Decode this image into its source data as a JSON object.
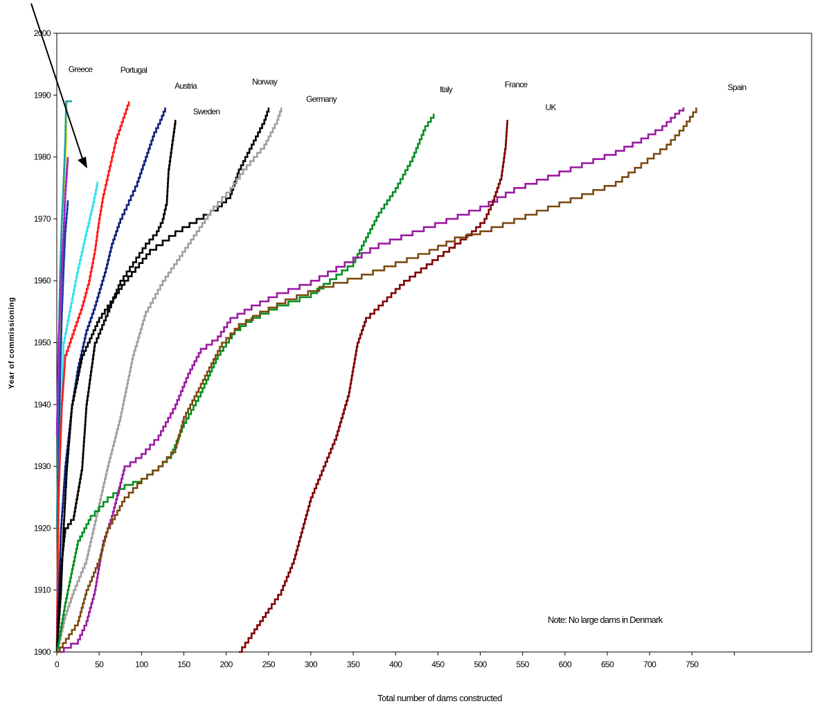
{
  "chart_data": {
    "type": "line",
    "xlabel": "Total number of dams constructed",
    "ylabel": "Year of commissioning",
    "xlim": [
      0,
      800
    ],
    "ylim": [
      1900,
      2000
    ],
    "x_ticks": [
      0,
      50,
      100,
      150,
      200,
      250,
      300,
      350,
      400,
      450,
      500,
      550,
      600,
      650,
      700,
      750
    ],
    "y_ticks": [
      1900,
      1910,
      1920,
      1930,
      1940,
      1950,
      1960,
      1970,
      1980,
      1990,
      2000
    ],
    "note": "Note:  No large dams in Denmark",
    "grid": false,
    "legend": "none (series labelled directly)",
    "arrow": "points to small-country curves",
    "series": [
      {
        "name": "Greece",
        "color": "#f0e020",
        "labeled": true,
        "points": [
          [
            0,
            1900
          ],
          [
            2,
            1935
          ],
          [
            3,
            1948
          ],
          [
            5,
            1955
          ],
          [
            7,
            1962
          ],
          [
            9,
            1970
          ],
          [
            10,
            1978
          ],
          [
            11,
            1983
          ],
          [
            12,
            1989
          ]
        ]
      },
      {
        "name": "",
        "color": "#1aa5a0",
        "labeled": false,
        "points": [
          [
            0,
            1920
          ],
          [
            2,
            1940
          ],
          [
            3,
            1955
          ],
          [
            4,
            1962
          ],
          [
            6,
            1970
          ],
          [
            8,
            1976
          ],
          [
            10,
            1983
          ],
          [
            11,
            1989
          ],
          [
            18,
            1989
          ]
        ]
      },
      {
        "name": "",
        "color": "#a020d0",
        "labeled": false,
        "points": [
          [
            0,
            1935
          ],
          [
            2,
            1950
          ],
          [
            5,
            1960
          ],
          [
            8,
            1968
          ],
          [
            10,
            1974
          ],
          [
            13,
            1980
          ]
        ]
      },
      {
        "name": "",
        "color": "#1a3aa0",
        "labeled": false,
        "points": [
          [
            0,
            1900
          ],
          [
            2,
            1930
          ],
          [
            4,
            1945
          ],
          [
            6,
            1955
          ],
          [
            8,
            1962
          ],
          [
            10,
            1968
          ],
          [
            13,
            1973
          ]
        ]
      },
      {
        "name": "",
        "color": "#30e0f0",
        "labeled": false,
        "points": [
          [
            0,
            1900
          ],
          [
            3,
            1930
          ],
          [
            8,
            1950
          ],
          [
            15,
            1955
          ],
          [
            25,
            1962
          ],
          [
            35,
            1968
          ],
          [
            42,
            1972
          ],
          [
            48,
            1976
          ]
        ]
      },
      {
        "name": "Portugal",
        "color": "#ff1a1a",
        "labeled": true,
        "points": [
          [
            0,
            1900
          ],
          [
            2,
            1925
          ],
          [
            6,
            1940
          ],
          [
            10,
            1948
          ],
          [
            20,
            1952
          ],
          [
            30,
            1956
          ],
          [
            38,
            1960
          ],
          [
            45,
            1965
          ],
          [
            50,
            1970
          ],
          [
            55,
            1974
          ],
          [
            60,
            1977
          ],
          [
            65,
            1980
          ],
          [
            70,
            1983
          ],
          [
            80,
            1987
          ],
          [
            85,
            1989
          ]
        ]
      },
      {
        "name": "Austria",
        "color": "#10207a",
        "labeled": true,
        "points": [
          [
            0,
            1900
          ],
          [
            5,
            1920
          ],
          [
            10,
            1930
          ],
          [
            18,
            1940
          ],
          [
            25,
            1946
          ],
          [
            35,
            1952
          ],
          [
            45,
            1956
          ],
          [
            58,
            1962
          ],
          [
            65,
            1966
          ],
          [
            75,
            1970
          ],
          [
            85,
            1973
          ],
          [
            95,
            1976
          ],
          [
            105,
            1980
          ],
          [
            115,
            1984
          ],
          [
            122,
            1986
          ],
          [
            128,
            1988
          ]
        ]
      },
      {
        "name": "Sweden",
        "color": "#000000",
        "labeled": true,
        "points": [
          [
            0,
            1900
          ],
          [
            3,
            1908
          ],
          [
            6,
            1915
          ],
          [
            10,
            1920
          ],
          [
            20,
            1922
          ],
          [
            30,
            1930
          ],
          [
            35,
            1940
          ],
          [
            45,
            1950
          ],
          [
            60,
            1955
          ],
          [
            75,
            1960
          ],
          [
            90,
            1963
          ],
          [
            105,
            1966
          ],
          [
            118,
            1968
          ],
          [
            125,
            1970
          ],
          [
            130,
            1973
          ],
          [
            132,
            1978
          ],
          [
            136,
            1982
          ],
          [
            140,
            1986
          ]
        ]
      },
      {
        "name": "Norway",
        "color": "#000000",
        "labeled": true,
        "points": [
          [
            0,
            1900
          ],
          [
            5,
            1910
          ],
          [
            8,
            1920
          ],
          [
            12,
            1930
          ],
          [
            18,
            1940
          ],
          [
            30,
            1948
          ],
          [
            50,
            1954
          ],
          [
            80,
            1960
          ],
          [
            110,
            1965
          ],
          [
            140,
            1968
          ],
          [
            165,
            1970
          ],
          [
            190,
            1972
          ],
          [
            205,
            1974
          ],
          [
            215,
            1978
          ],
          [
            230,
            1982
          ],
          [
            245,
            1986
          ],
          [
            250,
            1988
          ]
        ]
      },
      {
        "name": "Germany",
        "color": "#a0a0a0",
        "labeled": true,
        "points": [
          [
            0,
            1900
          ],
          [
            10,
            1906
          ],
          [
            20,
            1910
          ],
          [
            35,
            1915
          ],
          [
            50,
            1924
          ],
          [
            60,
            1930
          ],
          [
            75,
            1938
          ],
          [
            90,
            1948
          ],
          [
            105,
            1955
          ],
          [
            125,
            1960
          ],
          [
            145,
            1964
          ],
          [
            165,
            1968
          ],
          [
            185,
            1972
          ],
          [
            205,
            1975
          ],
          [
            220,
            1978
          ],
          [
            245,
            1982
          ],
          [
            260,
            1986
          ],
          [
            265,
            1988
          ]
        ]
      },
      {
        "name": "Italy",
        "color": "#009020",
        "labeled": true,
        "points": [
          [
            0,
            1900
          ],
          [
            10,
            1908
          ],
          [
            25,
            1918
          ],
          [
            40,
            1922
          ],
          [
            60,
            1925
          ],
          [
            80,
            1927
          ],
          [
            100,
            1928
          ],
          [
            120,
            1930
          ],
          [
            135,
            1932
          ],
          [
            150,
            1937
          ],
          [
            170,
            1942
          ],
          [
            190,
            1948
          ],
          [
            210,
            1952
          ],
          [
            230,
            1954
          ],
          [
            260,
            1956
          ],
          [
            300,
            1958
          ],
          [
            330,
            1961
          ],
          [
            350,
            1963
          ],
          [
            365,
            1967
          ],
          [
            380,
            1971
          ],
          [
            400,
            1975
          ],
          [
            420,
            1980
          ],
          [
            435,
            1985
          ],
          [
            445,
            1987
          ]
        ]
      },
      {
        "name": "France",
        "color": "#9a1aa0",
        "labeled": true,
        "points": [
          [
            0,
            1900
          ],
          [
            25,
            1902
          ],
          [
            35,
            1905
          ],
          [
            45,
            1910
          ],
          [
            55,
            1918
          ],
          [
            65,
            1922
          ],
          [
            80,
            1930
          ],
          [
            100,
            1932
          ],
          [
            120,
            1935
          ],
          [
            140,
            1940
          ],
          [
            155,
            1945
          ],
          [
            170,
            1949
          ],
          [
            190,
            1951
          ],
          [
            205,
            1954
          ],
          [
            230,
            1956
          ],
          [
            260,
            1958
          ],
          [
            300,
            1960
          ],
          [
            340,
            1963
          ],
          [
            380,
            1966
          ],
          [
            420,
            1968
          ],
          [
            460,
            1970
          ],
          [
            500,
            1972
          ],
          [
            540,
            1975
          ],
          [
            580,
            1977
          ],
          [
            620,
            1979
          ],
          [
            660,
            1981
          ],
          [
            690,
            1983
          ],
          [
            715,
            1985
          ],
          [
            730,
            1987
          ],
          [
            740,
            1988
          ]
        ]
      },
      {
        "name": "UK",
        "color": "#800000",
        "labeled": true,
        "points": [
          [
            215,
            1900
          ],
          [
            230,
            1903
          ],
          [
            250,
            1907
          ],
          [
            265,
            1910
          ],
          [
            280,
            1915
          ],
          [
            290,
            1920
          ],
          [
            300,
            1925
          ],
          [
            315,
            1930
          ],
          [
            330,
            1935
          ],
          [
            345,
            1942
          ],
          [
            355,
            1950
          ],
          [
            365,
            1954
          ],
          [
            380,
            1956
          ],
          [
            395,
            1958
          ],
          [
            410,
            1960
          ],
          [
            430,
            1962
          ],
          [
            450,
            1964
          ],
          [
            470,
            1966
          ],
          [
            490,
            1968
          ],
          [
            505,
            1970
          ],
          [
            515,
            1973
          ],
          [
            525,
            1977
          ],
          [
            530,
            1982
          ],
          [
            532,
            1986
          ]
        ]
      },
      {
        "name": "Spain",
        "color": "#7a4a10",
        "labeled": true,
        "points": [
          [
            0,
            1900
          ],
          [
            25,
            1905
          ],
          [
            35,
            1910
          ],
          [
            50,
            1915
          ],
          [
            60,
            1920
          ],
          [
            80,
            1925
          ],
          [
            100,
            1928
          ],
          [
            120,
            1930
          ],
          [
            140,
            1933
          ],
          [
            150,
            1938
          ],
          [
            165,
            1942
          ],
          [
            180,
            1946
          ],
          [
            195,
            1950
          ],
          [
            215,
            1953
          ],
          [
            240,
            1955
          ],
          [
            270,
            1957
          ],
          [
            310,
            1959
          ],
          [
            360,
            1961
          ],
          [
            400,
            1963
          ],
          [
            440,
            1965
          ],
          [
            470,
            1967
          ],
          [
            500,
            1968
          ],
          [
            540,
            1970
          ],
          [
            580,
            1972
          ],
          [
            620,
            1974
          ],
          [
            660,
            1976
          ],
          [
            690,
            1979
          ],
          [
            720,
            1982
          ],
          [
            740,
            1985
          ],
          [
            755,
            1988
          ]
        ]
      }
    ]
  }
}
